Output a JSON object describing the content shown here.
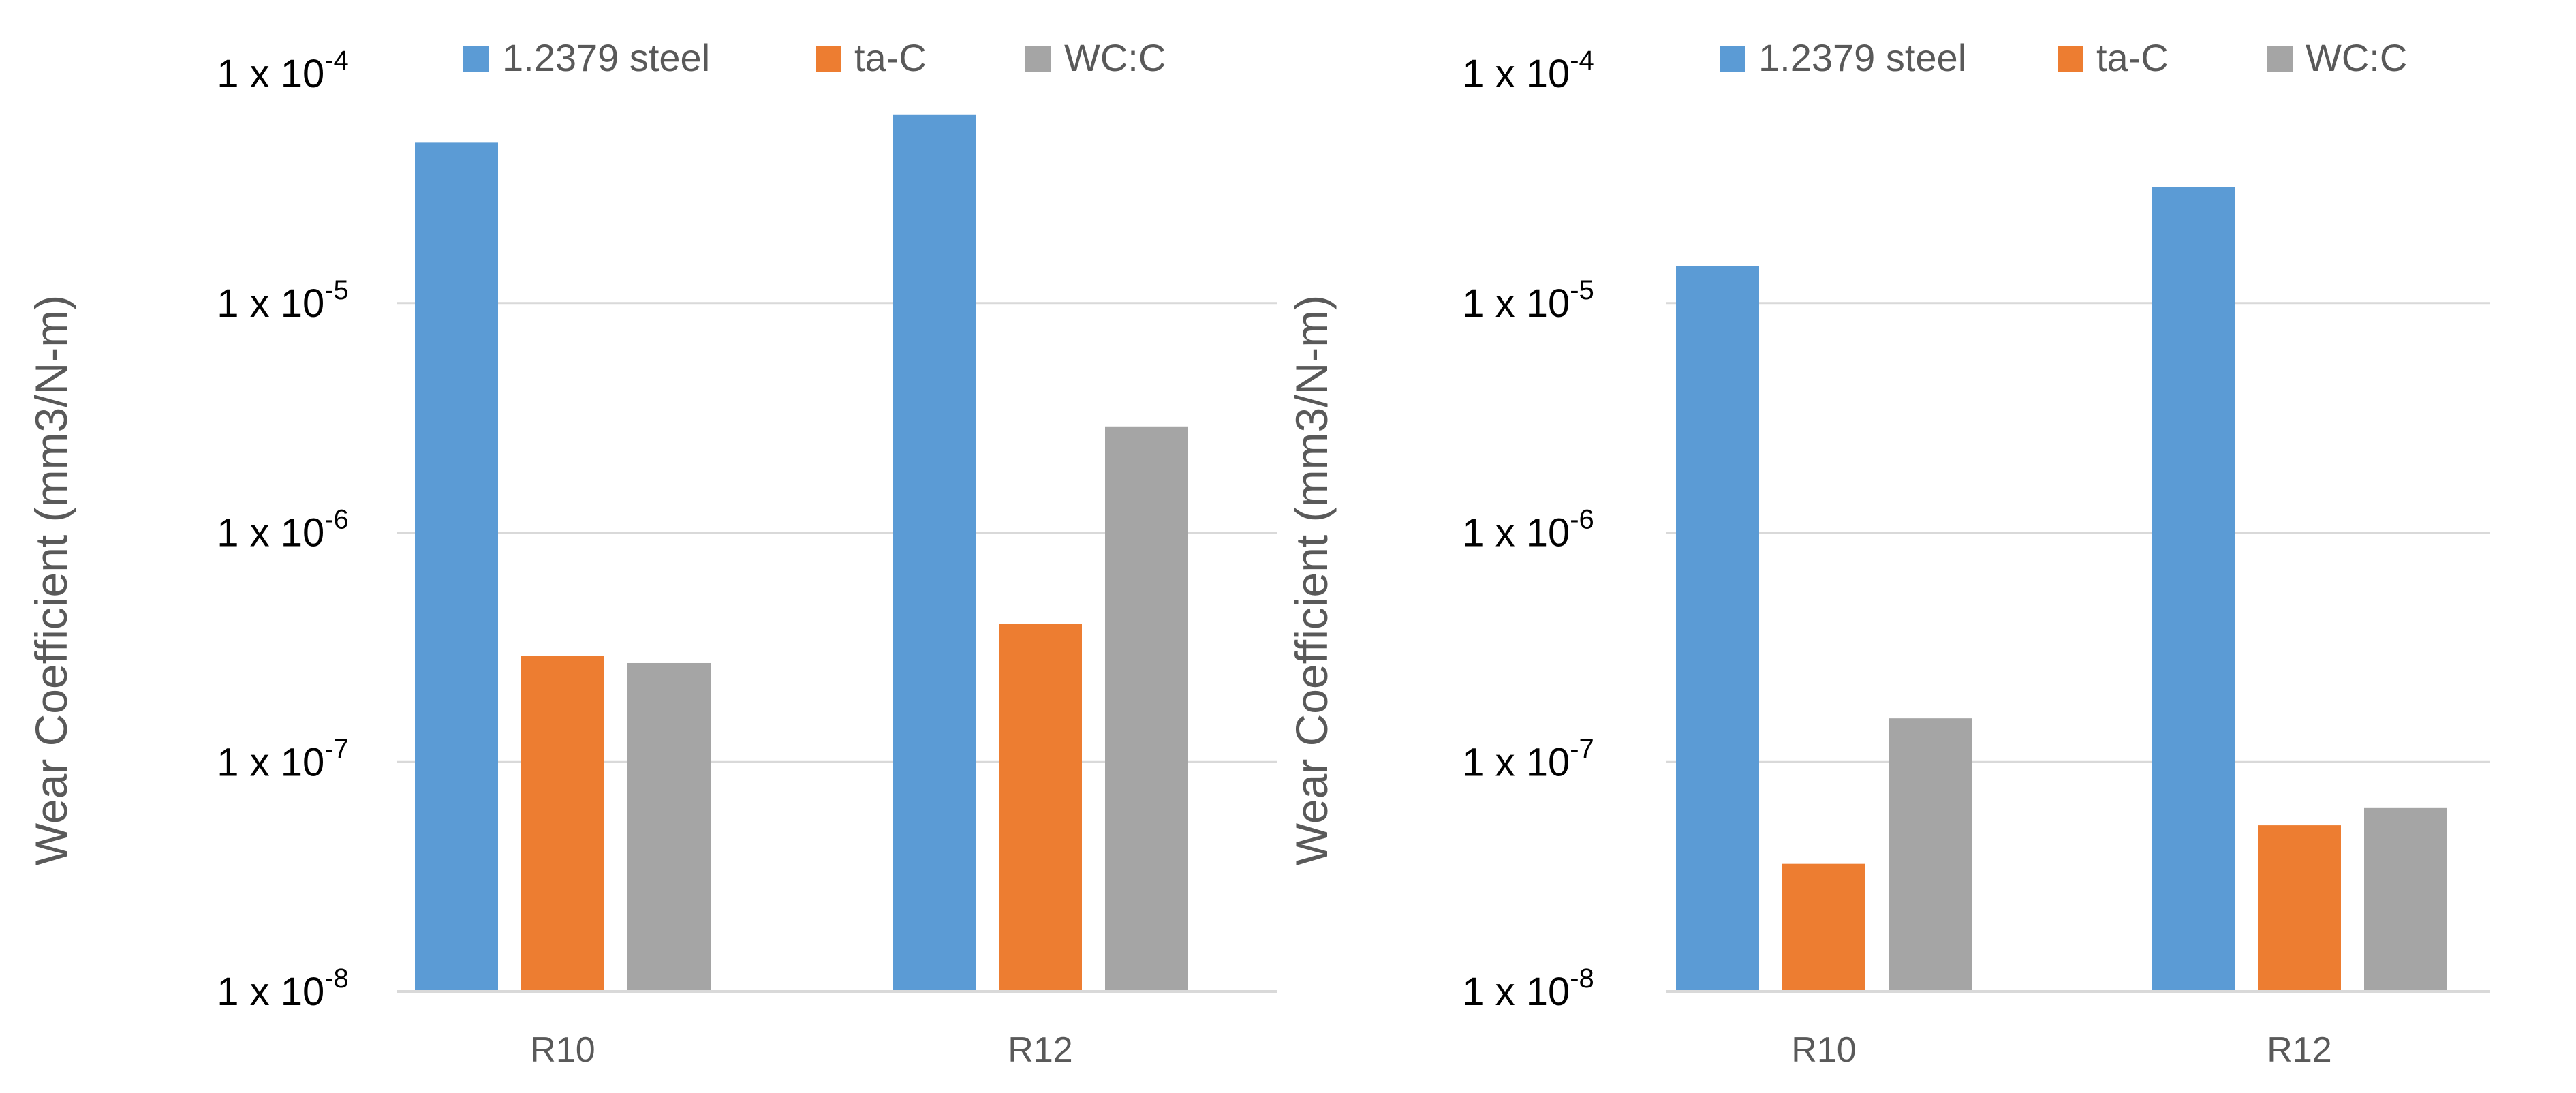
{
  "chart_data": [
    {
      "type": "bar",
      "yscale": "log",
      "ylabel": "Wear Coefficient (mm3/N-m)",
      "ylim": [
        1e-08,
        0.0001
      ],
      "ytick_values": [
        1e-08,
        1e-07,
        1e-06,
        1e-05,
        0.0001
      ],
      "ytick_labels": [
        {
          "base": "1 x 10",
          "exp": "-8"
        },
        {
          "base": "1 x 10",
          "exp": "-7"
        },
        {
          "base": "1 x 10",
          "exp": "-6"
        },
        {
          "base": "1 x 10",
          "exp": "-5"
        },
        {
          "base": "1 x 10",
          "exp": "-4"
        }
      ],
      "categories": [
        "R10",
        "R12"
      ],
      "legend_position": "top",
      "grid": true,
      "series": [
        {
          "name": "1.2379 steel",
          "color": "#5b9bd5",
          "values": [
            5e-05,
            6.6e-05
          ]
        },
        {
          "name": "ta-C",
          "color": "#ed7d31",
          "values": [
            2.9e-07,
            4e-07
          ]
        },
        {
          "name": "WC:C",
          "color": "#a5a5a5",
          "values": [
            2.7e-07,
            2.9e-06
          ]
        }
      ]
    },
    {
      "type": "bar",
      "yscale": "log",
      "ylabel": "Wear Coefficient (mm3/N-m)",
      "ylim": [
        1e-08,
        0.0001
      ],
      "ytick_values": [
        1e-08,
        1e-07,
        1e-06,
        1e-05,
        0.0001
      ],
      "ytick_labels": [
        {
          "base": "1 x 10",
          "exp": "-8"
        },
        {
          "base": "1 x 10",
          "exp": "-7"
        },
        {
          "base": "1 x 10",
          "exp": "-6"
        },
        {
          "base": "1 x 10",
          "exp": "-5"
        },
        {
          "base": "1 x 10",
          "exp": "-4"
        }
      ],
      "categories": [
        "R10",
        "R12"
      ],
      "legend_position": "top",
      "grid": true,
      "series": [
        {
          "name": "1.2379 steel",
          "color": "#5b9bd5",
          "values": [
            1.45e-05,
            3.2e-05
          ]
        },
        {
          "name": "ta-C",
          "color": "#ed7d31",
          "values": [
            3.6e-08,
            5.3e-08
          ]
        },
        {
          "name": "WC:C",
          "color": "#a5a5a5",
          "values": [
            1.55e-07,
            6.3e-08
          ]
        }
      ]
    }
  ]
}
